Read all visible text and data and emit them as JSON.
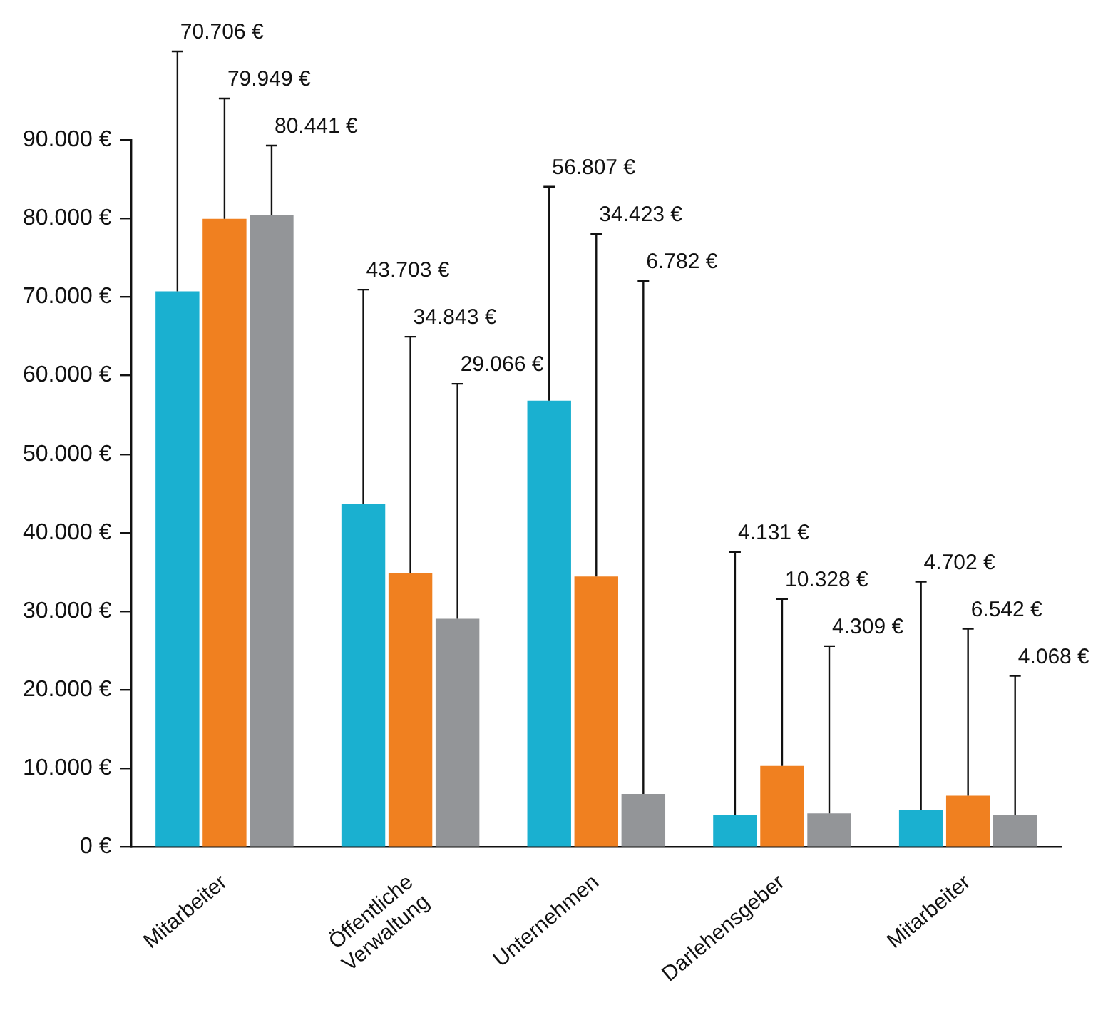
{
  "chart_data": {
    "type": "bar",
    "categories": [
      "Mitarbeiter",
      "Öffentliche\nVerwaltung",
      "Unternehmen",
      "Darlehensgeber",
      "Mitarbeiter"
    ],
    "series": [
      {
        "color": "#1ab0d0",
        "values": [
          70706,
          43703,
          56807,
          4131,
          4702
        ],
        "value_labels": [
          "70.706 €",
          "43.703 €",
          "56.807 €",
          "4.131 €",
          "4.702 €"
        ]
      },
      {
        "color": "#f08020",
        "values": [
          79949,
          34843,
          34423,
          10328,
          6542
        ],
        "value_labels": [
          "79.949 €",
          "34.843 €",
          "34.423 €",
          "10.328 €",
          "6.542 €"
        ]
      },
      {
        "color": "#939598",
        "values": [
          80441,
          29066,
          6782,
          4309,
          4068
        ],
        "value_labels": [
          "80.441 €",
          "29.066 €",
          "6.782 €",
          "4.309 €",
          "4.068 €"
        ]
      }
    ],
    "ylim": [
      0,
      90000
    ],
    "yticks": [
      {
        "value": 0,
        "label": "0 €"
      },
      {
        "value": 10000,
        "label": "10.000 €"
      },
      {
        "value": 20000,
        "label": "20.000 €"
      },
      {
        "value": 30000,
        "label": "30.000 €"
      },
      {
        "value": 40000,
        "label": "40.000 €"
      },
      {
        "value": 50000,
        "label": "50.000 €"
      },
      {
        "value": 60000,
        "label": "60.000 €"
      },
      {
        "value": 70000,
        "label": "70.000 €"
      },
      {
        "value": 80000,
        "label": "80.000 €"
      },
      {
        "value": 90000,
        "label": "90.000 €"
      }
    ],
    "grid": false,
    "legend": false
  }
}
